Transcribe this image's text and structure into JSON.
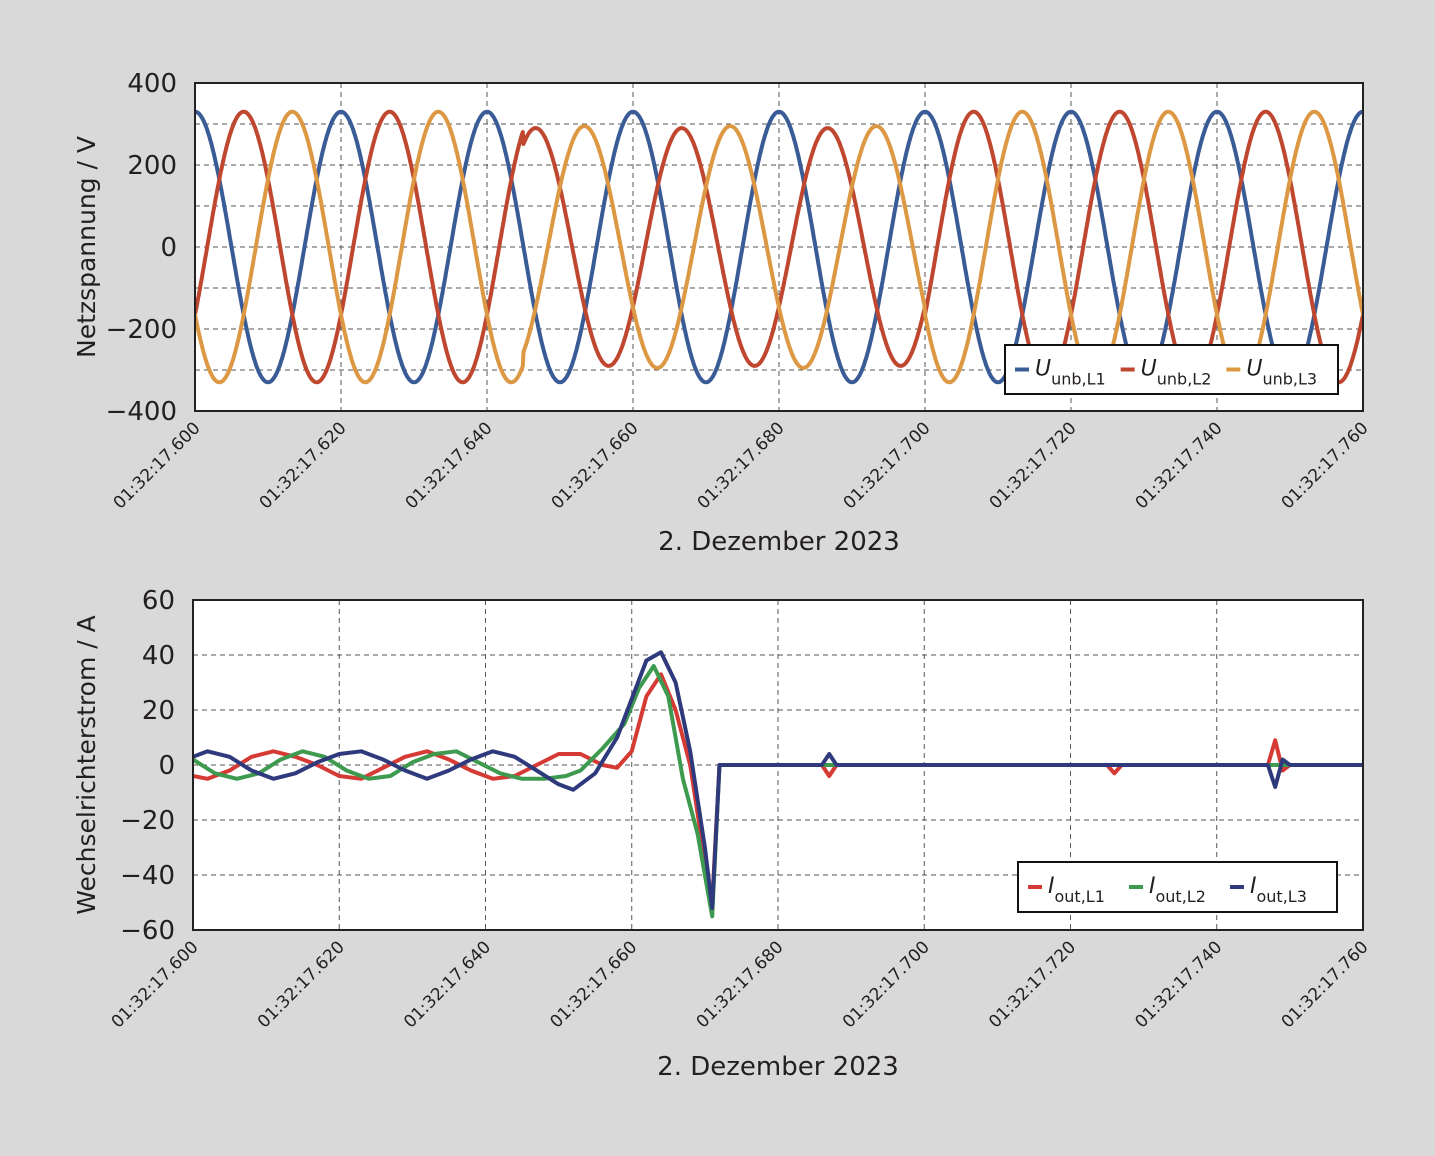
{
  "colors": {
    "background": "#d9d9d9",
    "plot_background": "#ffffff",
    "U_L1": "#3a5c96",
    "U_L2": "#c0472f",
    "U_L3": "#dd9844",
    "I_L1": "#d63a34",
    "I_L2": "#3d9a4e",
    "I_L3": "#2e3a7c"
  },
  "chart_data": [
    {
      "type": "line",
      "ylabel": "Netzspannung / V",
      "xlabel": "2. Dezember 2023",
      "ylim": [
        -400,
        400
      ],
      "yticks": [
        "400",
        "200",
        "0",
        "-200",
        "-400"
      ],
      "xlim": [
        "01:32:17.600",
        "01:32:17.760"
      ],
      "xticks": [
        "01:32:17.600",
        "01:32:17.620",
        "01:32:17.640",
        "01:32:17.660",
        "01:32:17.680",
        "01:32:17.700",
        "01:32:17.720",
        "01:32:17.740",
        "01:32:17.760"
      ],
      "grid": true,
      "legend_position": "bottom-right",
      "series": [
        {
          "name": "U",
          "subscript": "unb,L1",
          "color": "#3a5c96",
          "sine": {
            "amplitude_v": 330,
            "frequency_hz": 50,
            "phase_deg": 90
          },
          "dips": []
        },
        {
          "name": "U",
          "subscript": "unb,L2",
          "color": "#c0472f",
          "sine": {
            "amplitude_v": 330,
            "frequency_hz": 50,
            "phase_deg": -30
          },
          "dips": [
            {
              "from": "01:32:17.645",
              "to": "01:32:17.700",
              "amplitude_v": 290
            }
          ]
        },
        {
          "name": "U",
          "subscript": "unb,L3",
          "color": "#dd9844",
          "sine": {
            "amplitude_v": 330,
            "frequency_hz": 50,
            "phase_deg": 210
          },
          "dips": [
            {
              "from": "01:32:17.645",
              "to": "01:32:17.700",
              "amplitude_v": 295
            }
          ]
        }
      ]
    },
    {
      "type": "line",
      "ylabel": "Wechselrichterstrom / A",
      "xlabel": "2. Dezember 2023",
      "ylim": [
        -60,
        60
      ],
      "yticks": [
        "60",
        "40",
        "20",
        "0",
        "-20",
        "-40",
        "-60"
      ],
      "xlim": [
        "01:32:17.600",
        "01:32:17.760"
      ],
      "xticks": [
        "01:32:17.600",
        "01:32:17.620",
        "01:32:17.640",
        "01:32:17.660",
        "01:32:17.680",
        "01:32:17.700",
        "01:32:17.720",
        "01:32:17.740",
        "01:32:17.760"
      ],
      "grid": true,
      "legend_position": "bottom-right",
      "series": [
        {
          "name": "I",
          "subscript": "out,L1",
          "color": "#d63a34",
          "points": [
            [
              "01:32:17.600",
              -4
            ],
            [
              "01:32:17.602",
              -5
            ],
            [
              "01:32:17.605",
              -2
            ],
            [
              "01:32:17.608",
              3
            ],
            [
              "01:32:17.611",
              5
            ],
            [
              "01:32:17.614",
              3
            ],
            [
              "01:32:17.617",
              0
            ],
            [
              "01:32:17.620",
              -4
            ],
            [
              "01:32:17.623",
              -5
            ],
            [
              "01:32:17.626",
              -1
            ],
            [
              "01:32:17.629",
              3
            ],
            [
              "01:32:17.632",
              5
            ],
            [
              "01:32:17.635",
              2
            ],
            [
              "01:32:17.638",
              -2
            ],
            [
              "01:32:17.641",
              -5
            ],
            [
              "01:32:17.644",
              -4
            ],
            [
              "01:32:17.647",
              0
            ],
            [
              "01:32:17.650",
              4
            ],
            [
              "01:32:17.653",
              4
            ],
            [
              "01:32:17.656",
              0
            ],
            [
              "01:32:17.658",
              -1
            ],
            [
              "01:32:17.660",
              5
            ],
            [
              "01:32:17.662",
              25
            ],
            [
              "01:32:17.664",
              33
            ],
            [
              "01:32:17.666",
              20
            ],
            [
              "01:32:17.668",
              0
            ],
            [
              "01:32:17.670",
              -35
            ],
            [
              "01:32:17.671",
              -50
            ],
            [
              "01:32:17.672",
              0
            ],
            [
              "01:32:17.686",
              0
            ],
            [
              "01:32:17.687",
              -4
            ],
            [
              "01:32:17.688",
              0
            ],
            [
              "01:32:17.725",
              0
            ],
            [
              "01:32:17.726",
              -3
            ],
            [
              "01:32:17.727",
              0
            ],
            [
              "01:32:17.747",
              0
            ],
            [
              "01:32:17.748",
              9
            ],
            [
              "01:32:17.749",
              -2
            ],
            [
              "01:32:17.750",
              0
            ],
            [
              "01:32:17.760",
              0
            ]
          ]
        },
        {
          "name": "I",
          "subscript": "out,L2",
          "color": "#3d9a4e",
          "points": [
            [
              "01:32:17.600",
              2
            ],
            [
              "01:32:17.603",
              -3
            ],
            [
              "01:32:17.606",
              -5
            ],
            [
              "01:32:17.609",
              -3
            ],
            [
              "01:32:17.612",
              2
            ],
            [
              "01:32:17.615",
              5
            ],
            [
              "01:32:17.618",
              3
            ],
            [
              "01:32:17.621",
              -2
            ],
            [
              "01:32:17.624",
              -5
            ],
            [
              "01:32:17.627",
              -4
            ],
            [
              "01:32:17.630",
              1
            ],
            [
              "01:32:17.633",
              4
            ],
            [
              "01:32:17.636",
              5
            ],
            [
              "01:32:17.639",
              1
            ],
            [
              "01:32:17.642",
              -3
            ],
            [
              "01:32:17.645",
              -5
            ],
            [
              "01:32:17.648",
              -5
            ],
            [
              "01:32:17.651",
              -4
            ],
            [
              "01:32:17.653",
              -2
            ],
            [
              "01:32:17.656",
              6
            ],
            [
              "01:32:17.659",
              15
            ],
            [
              "01:32:17.661",
              28
            ],
            [
              "01:32:17.663",
              36
            ],
            [
              "01:32:17.665",
              25
            ],
            [
              "01:32:17.667",
              -5
            ],
            [
              "01:32:17.669",
              -25
            ],
            [
              "01:32:17.671",
              -55
            ],
            [
              "01:32:17.672",
              0
            ],
            [
              "01:32:17.760",
              0
            ]
          ]
        },
        {
          "name": "I",
          "subscript": "out,L3",
          "color": "#2e3a7c",
          "points": [
            [
              "01:32:17.600",
              3
            ],
            [
              "01:32:17.602",
              5
            ],
            [
              "01:32:17.605",
              3
            ],
            [
              "01:32:17.608",
              -2
            ],
            [
              "01:32:17.611",
              -5
            ],
            [
              "01:32:17.614",
              -3
            ],
            [
              "01:32:17.617",
              1
            ],
            [
              "01:32:17.620",
              4
            ],
            [
              "01:32:17.623",
              5
            ],
            [
              "01:32:17.626",
              2
            ],
            [
              "01:32:17.629",
              -2
            ],
            [
              "01:32:17.632",
              -5
            ],
            [
              "01:32:17.635",
              -2
            ],
            [
              "01:32:17.638",
              2
            ],
            [
              "01:32:17.641",
              5
            ],
            [
              "01:32:17.644",
              3
            ],
            [
              "01:32:17.647",
              -2
            ],
            [
              "01:32:17.650",
              -7
            ],
            [
              "01:32:17.652",
              -9
            ],
            [
              "01:32:17.655",
              -3
            ],
            [
              "01:32:17.658",
              10
            ],
            [
              "01:32:17.660",
              24
            ],
            [
              "01:32:17.662",
              38
            ],
            [
              "01:32:17.664",
              41
            ],
            [
              "01:32:17.666",
              30
            ],
            [
              "01:32:17.668",
              5
            ],
            [
              "01:32:17.670",
              -30
            ],
            [
              "01:32:17.671",
              -52
            ],
            [
              "01:32:17.672",
              0
            ],
            [
              "01:32:17.686",
              0
            ],
            [
              "01:32:17.687",
              4
            ],
            [
              "01:32:17.688",
              0
            ],
            [
              "01:32:17.747",
              0
            ],
            [
              "01:32:17.748",
              -8
            ],
            [
              "01:32:17.749",
              2
            ],
            [
              "01:32:17.750",
              0
            ],
            [
              "01:32:17.760",
              0
            ]
          ]
        }
      ]
    }
  ]
}
